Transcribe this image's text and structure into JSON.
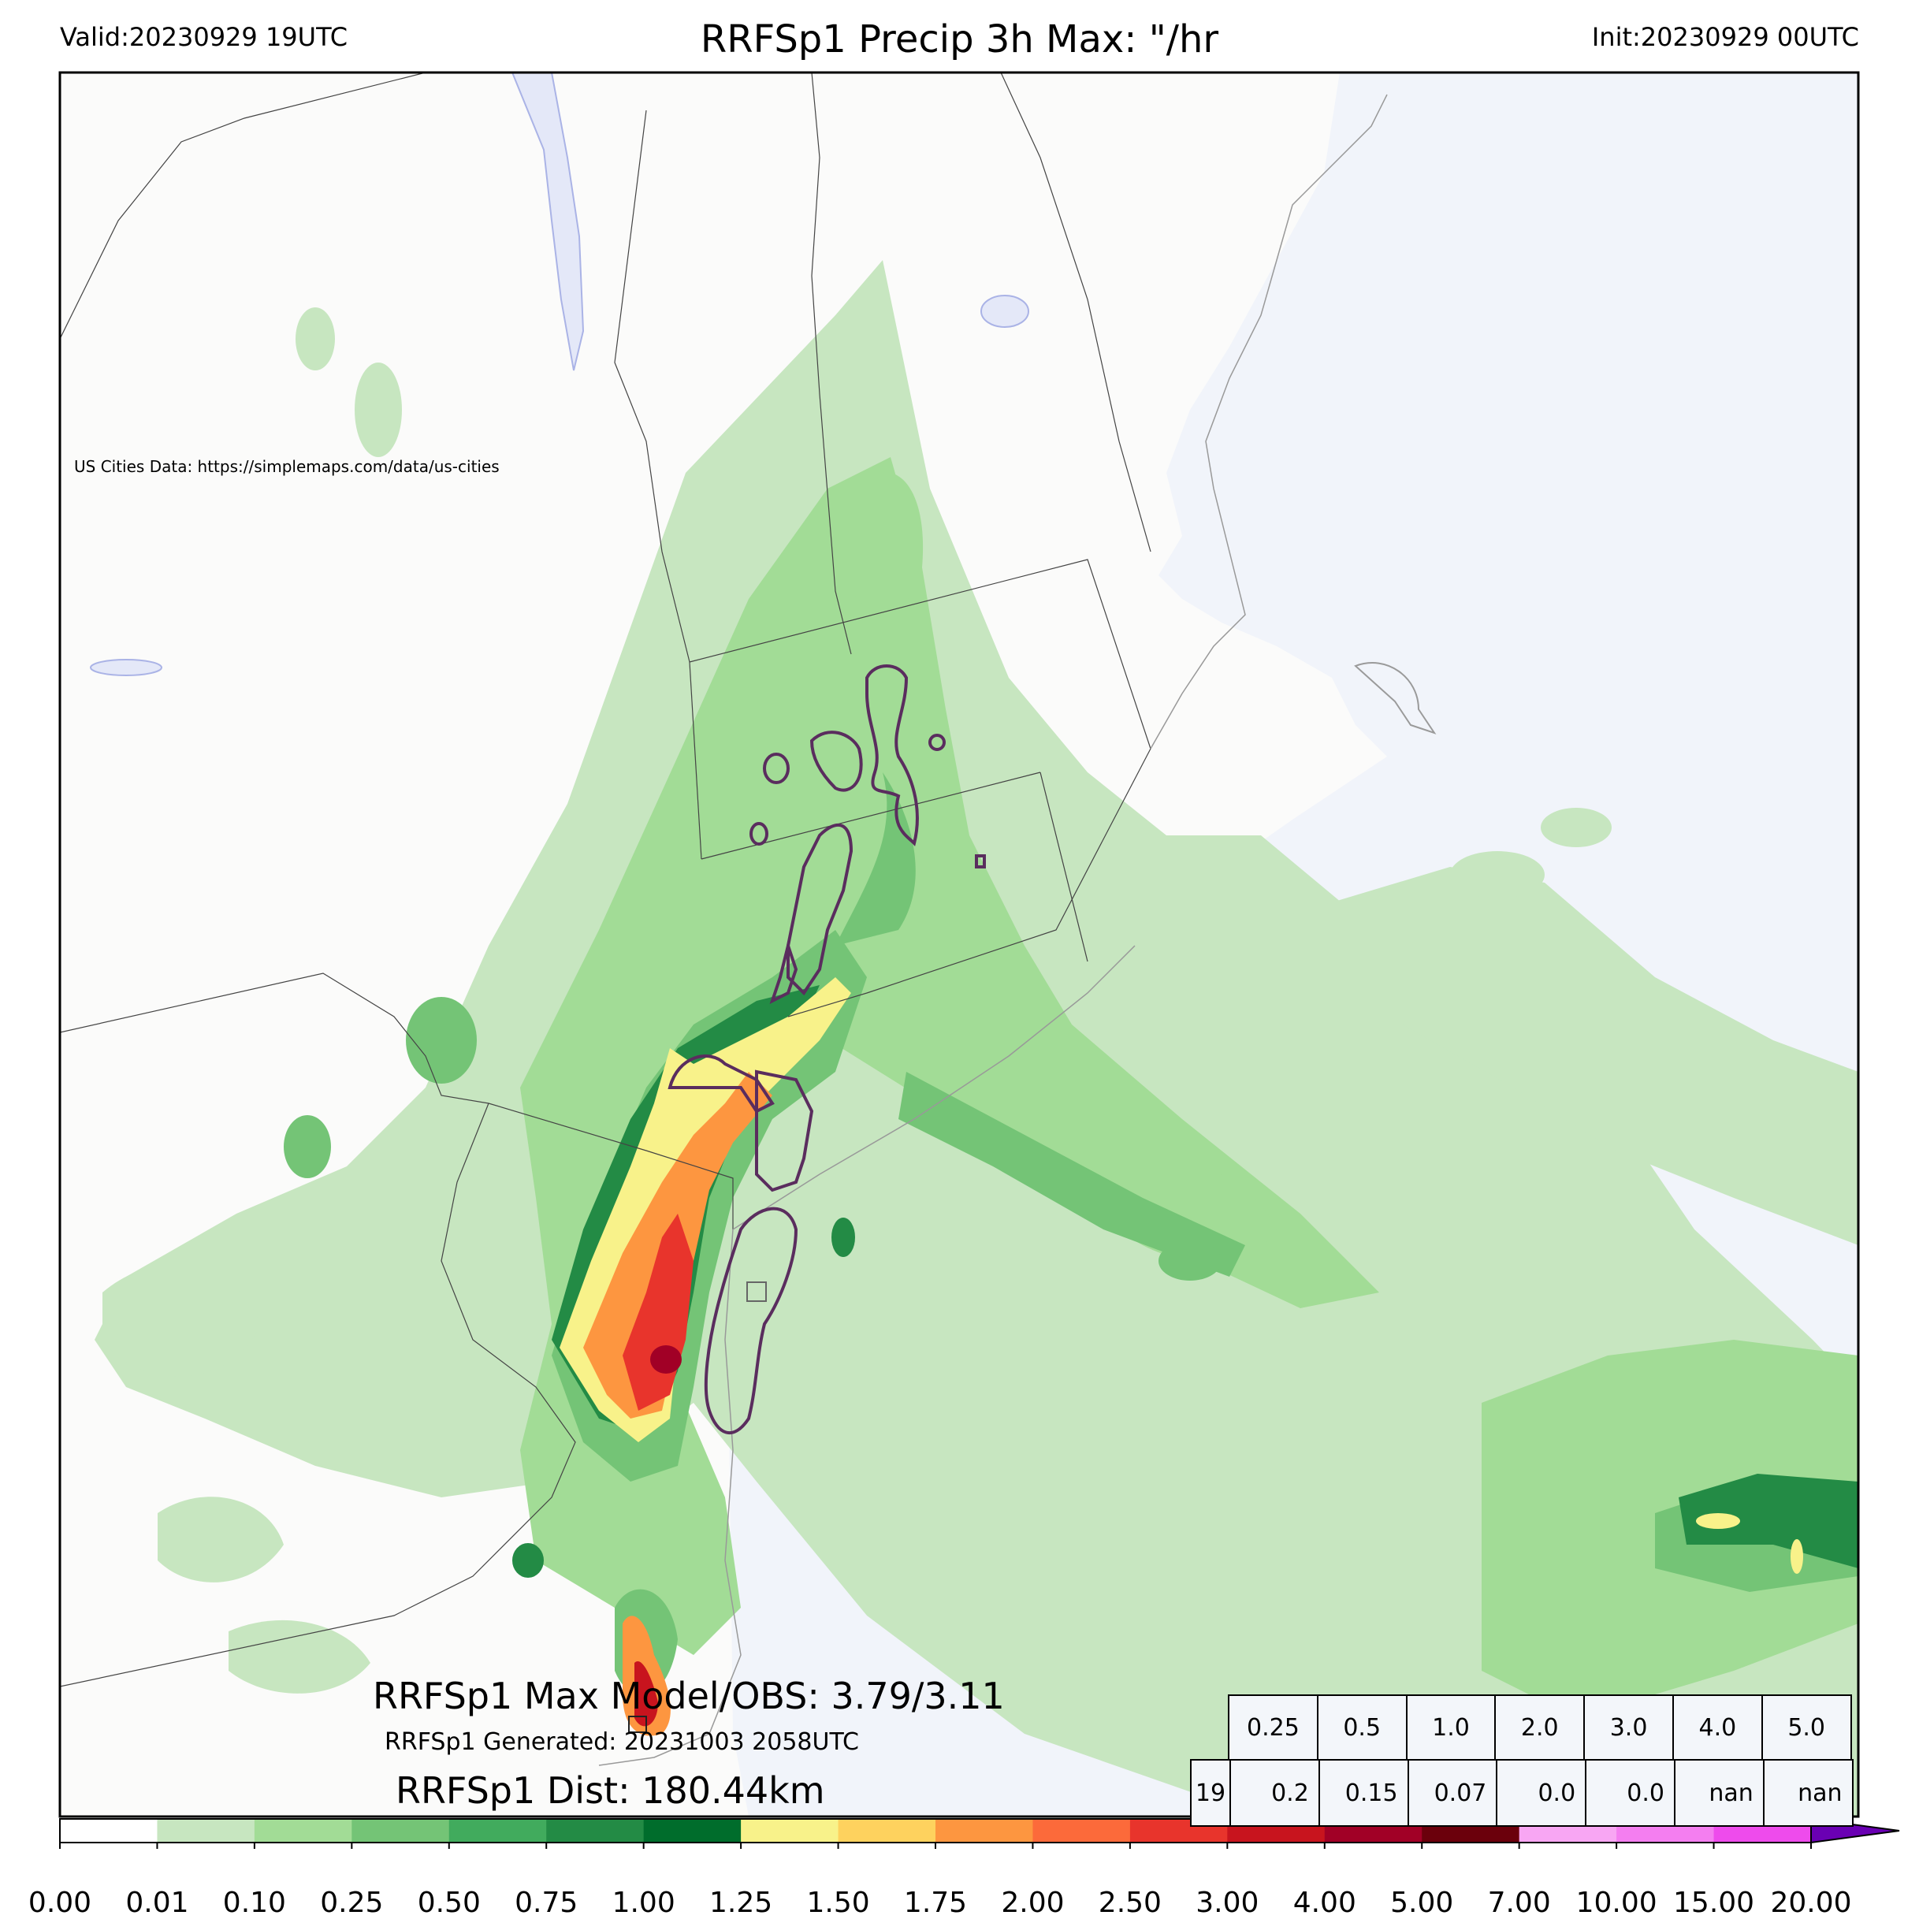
{
  "header": {
    "valid": "Valid:20230929 19UTC",
    "title": "RRFSp1 Precip 3h Max: \"/hr",
    "init": "Init:20230929 00UTC"
  },
  "map": {
    "credit": "US Cities Data: https://simplemaps.com/data/us-cities",
    "max_line": "RRFSp1 Max Model/OBS: 3.79/3.11",
    "generated_line": "RRFSp1 Generated: 20231003 2058UTC",
    "dist_line": "RRFSp1 Dist: 180.44km",
    "colors": {
      "land": "#fbfbfa",
      "water": "#f1f4fa",
      "obs_contour": "#5a2d5e",
      "borders": "#444444"
    }
  },
  "stats_table": {
    "thresholds": [
      "0.25",
      "0.5",
      "1.0",
      "2.0",
      "3.0",
      "4.0",
      "5.0"
    ],
    "hour": "19",
    "values": [
      "0.2",
      "0.15",
      "0.07",
      "0.0",
      "0.0",
      "nan",
      "nan"
    ]
  },
  "colorbar": {
    "ticks": [
      "0.00",
      "0.01",
      "0.10",
      "0.25",
      "0.50",
      "0.75",
      "1.00",
      "1.25",
      "1.50",
      "1.75",
      "2.00",
      "2.50",
      "3.00",
      "4.00",
      "5.00",
      "7.00",
      "10.00",
      "15.00",
      "20.00"
    ],
    "colors": [
      "#ffffff",
      "#c7e6c0",
      "#a2dc96",
      "#74c476",
      "#41ab5d",
      "#238b45",
      "#006d2c",
      "#f8f28a",
      "#fed25e",
      "#fd9640",
      "#fc6a3a",
      "#e8342c",
      "#c8141e",
      "#a10026",
      "#6b000c",
      "#f8a6f3",
      "#f47ef0",
      "#ee4bec",
      "#e100ed",
      "#a400d9",
      "#6a00b3"
    ]
  }
}
